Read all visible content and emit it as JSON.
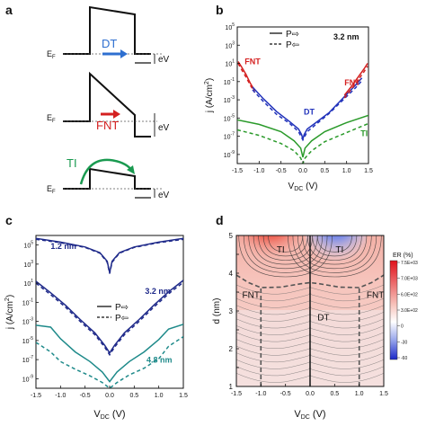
{
  "figure": {
    "panel_labels": {
      "a": "a",
      "b": "b",
      "c": "c",
      "d": "d"
    },
    "panel_a": {
      "diagrams": [
        {
          "fermi_label": "E",
          "fermi_sub": "F",
          "ev_label": "eV",
          "arrow_label": "DT",
          "arrow_color": "#2e6fd0"
        },
        {
          "fermi_label": "E",
          "fermi_sub": "F",
          "ev_label": "eV",
          "arrow_label": "FNT",
          "arrow_color": "#d42020"
        },
        {
          "fermi_label": "E",
          "fermi_sub": "F",
          "ev_label": "eV",
          "arrow_label": "TI",
          "arrow_color": "#1a9a50"
        }
      ]
    }
  },
  "chart_data": [
    {
      "panel": "b",
      "type": "line",
      "ylabel": "j (A/cm",
      "ylabel_sup": "2",
      "ylabel_end": ")",
      "xlabel": "V",
      "xlabel_sub": "DC",
      "xlabel_unit": " (V)",
      "xlim": [
        -1.5,
        1.5
      ],
      "ylim_log10": [
        -10,
        5
      ],
      "y_scale": "log",
      "x_ticks": [
        -1.5,
        -1.0,
        -0.5,
        0.0,
        0.5,
        1.0,
        1.5
      ],
      "x_tick_labels": [
        "-1.5",
        "-1.0",
        "-0.5",
        "0.0",
        "0.5",
        "1.0",
        "1.5"
      ],
      "y_tick_labels": [
        {
          "base": "10",
          "exp": "5",
          "v": 5
        },
        {
          "base": "10",
          "exp": "3",
          "v": 3
        },
        {
          "base": "10",
          "exp": "1",
          "v": 1
        },
        {
          "base": "10",
          "exp": "-1",
          "v": -1
        },
        {
          "base": "10",
          "exp": "-3",
          "v": -3
        },
        {
          "base": "10",
          "exp": "-5",
          "v": -5
        },
        {
          "base": "10",
          "exp": "-7",
          "v": -7
        },
        {
          "base": "10",
          "exp": "-9",
          "v": -9
        }
      ],
      "legend": [
        {
          "text": "P",
          "arrow": "⇨",
          "style": "solid"
        },
        {
          "text": "P",
          "arrow": "⇦",
          "style": "dashed"
        }
      ],
      "thickness_note": "3.2 nm",
      "annotations": [
        {
          "text": "FNT",
          "x": -1.33,
          "y": 0.9,
          "color": "#d42020"
        },
        {
          "text": "FNT",
          "x": 0.95,
          "y": -1.4,
          "color": "#d42020"
        },
        {
          "text": "DT",
          "x": 0.02,
          "y": -4.6,
          "color": "#2233bb"
        },
        {
          "text": "TI",
          "x": 1.32,
          "y": -7.0,
          "color": "#2a9a2a"
        }
      ],
      "series": [
        {
          "color": "#d42020",
          "style": "solid",
          "x": [
            -1.48,
            -1.4,
            -1.3,
            -1.2,
            -1.1
          ],
          "y": [
            1.2,
            0.6,
            -0.2,
            -1.2,
            -2.0
          ]
        },
        {
          "color": "#d42020",
          "style": "dashed",
          "x": [
            -1.48,
            -1.4,
            -1.3,
            -1.2,
            -1.1
          ],
          "y": [
            1.0,
            0.3,
            -0.5,
            -1.4,
            -2.2
          ]
        },
        {
          "color": "#2233bb",
          "style": "solid",
          "x": [
            -1.15,
            -0.9,
            -0.6,
            -0.3,
            -0.1,
            -0.03,
            0.0,
            0.03,
            0.1,
            0.3,
            0.6,
            0.9,
            1.2,
            1.35
          ],
          "y": [
            -1.6,
            -2.9,
            -4.3,
            -5.4,
            -6.2,
            -6.8,
            -7.3,
            -6.8,
            -6.2,
            -5.5,
            -4.4,
            -2.9,
            -1.4,
            -0.6
          ]
        },
        {
          "color": "#2233bb",
          "style": "dashed",
          "x": [
            -1.15,
            -0.9,
            -0.6,
            -0.3,
            -0.1,
            0.0,
            0.1,
            0.3,
            0.6,
            0.9,
            1.2,
            1.35
          ],
          "y": [
            -1.9,
            -3.2,
            -4.6,
            -5.6,
            -6.5,
            -7.4,
            -6.5,
            -5.7,
            -4.5,
            -3.1,
            -1.7,
            -0.9
          ]
        },
        {
          "color": "#d42020",
          "style": "solid",
          "x": [
            0.95,
            1.1,
            1.25,
            1.4,
            1.48
          ],
          "y": [
            -2.5,
            -1.6,
            -0.6,
            0.4,
            1.0
          ]
        },
        {
          "color": "#d42020",
          "style": "dashed",
          "x": [
            0.95,
            1.1,
            1.25,
            1.4,
            1.48
          ],
          "y": [
            -2.8,
            -1.9,
            -0.9,
            0.1,
            0.7
          ]
        },
        {
          "color": "#2a9a2a",
          "style": "solid",
          "x": [
            -1.5,
            -1.0,
            -0.5,
            -0.2,
            -0.05,
            0.0,
            0.05,
            0.2,
            0.5,
            1.0,
            1.5
          ],
          "y": [
            -5.2,
            -5.7,
            -6.5,
            -7.5,
            -8.3,
            -9.3,
            -8.3,
            -7.5,
            -6.5,
            -5.5,
            -4.7
          ]
        },
        {
          "color": "#2a9a2a",
          "style": "dashed",
          "x": [
            -1.5,
            -1.0,
            -0.5,
            -0.2,
            -0.05,
            0.0,
            0.05,
            0.2,
            0.5,
            1.0,
            1.5
          ],
          "y": [
            -6.3,
            -6.9,
            -7.8,
            -8.6,
            -9.4,
            -10.0,
            -9.4,
            -8.6,
            -7.6,
            -6.6,
            -5.6
          ]
        }
      ]
    },
    {
      "panel": "c",
      "type": "line",
      "ylabel": "j (A/cm",
      "ylabel_sup": "2",
      "ylabel_end": ")",
      "xlabel": "V",
      "xlabel_sub": "DC",
      "xlabel_unit": " (V)",
      "xlim": [
        -1.5,
        1.5
      ],
      "ylim_log10": [
        -10,
        6
      ],
      "y_scale": "log",
      "x_ticks": [
        -1.5,
        -1.0,
        -0.5,
        0.0,
        0.5,
        1.0,
        1.5
      ],
      "x_tick_labels": [
        "-1.5",
        "-1.0",
        "-0.5",
        "0.0",
        "0.5",
        "1.0",
        "1.5"
      ],
      "y_tick_labels": [
        {
          "base": "10",
          "exp": "5",
          "v": 5
        },
        {
          "base": "10",
          "exp": "3",
          "v": 3
        },
        {
          "base": "10",
          "exp": "1",
          "v": 1
        },
        {
          "base": "10",
          "exp": "-1",
          "v": -1
        },
        {
          "base": "10",
          "exp": "-3",
          "v": -3
        },
        {
          "base": "10",
          "exp": "-5",
          "v": -5
        },
        {
          "base": "10",
          "exp": "-7",
          "v": -7
        },
        {
          "base": "10",
          "exp": "-9",
          "v": -9
        }
      ],
      "legend": [
        {
          "text": "P",
          "arrow": "⇨",
          "style": "solid"
        },
        {
          "text": "P",
          "arrow": "⇦",
          "style": "dashed"
        }
      ],
      "annotations": [
        {
          "text": "1.2 nm",
          "x": -1.2,
          "y": 4.6,
          "color": "#1f2a8a"
        },
        {
          "text": "3.2 nm",
          "x": 0.72,
          "y": -0.1,
          "color": "#1f2a8a"
        },
        {
          "text": "4.8 nm",
          "x": 0.75,
          "y": -7.3,
          "color": "#1e8a8a"
        }
      ],
      "series": [
        {
          "color": "#1f2a8a",
          "style": "solid",
          "x": [
            -1.5,
            -1.0,
            -0.5,
            -0.2,
            -0.05,
            0.0,
            0.05,
            0.2,
            0.5,
            1.0,
            1.5
          ],
          "y": [
            5.7,
            5.3,
            4.8,
            4.2,
            3.3,
            2.1,
            3.3,
            4.2,
            4.8,
            5.3,
            5.7
          ]
        },
        {
          "color": "#1f2a8a",
          "style": "dashed",
          "x": [
            -1.5,
            -1.0,
            -0.5,
            -0.2,
            -0.05,
            0.0,
            0.05,
            0.2,
            0.5,
            1.0,
            1.5
          ],
          "y": [
            5.6,
            5.25,
            4.75,
            4.15,
            3.2,
            2.0,
            3.2,
            4.15,
            4.75,
            5.25,
            5.6
          ]
        },
        {
          "color": "#1f2a8a",
          "style": "solid",
          "x": [
            -1.5,
            -1.2,
            -0.9,
            -0.6,
            -0.3,
            -0.1,
            0.0,
            0.1,
            0.3,
            0.6,
            0.9,
            1.2,
            1.5
          ],
          "y": [
            1.2,
            0.0,
            -1.3,
            -2.8,
            -4.2,
            -5.5,
            -6.3,
            -5.5,
            -4.2,
            -2.8,
            -1.3,
            0.1,
            1.3
          ]
        },
        {
          "color": "#1f2a8a",
          "style": "dashed",
          "x": [
            -1.5,
            -1.2,
            -0.9,
            -0.6,
            -0.3,
            -0.1,
            0.0,
            0.1,
            0.3,
            0.6,
            0.9,
            1.2,
            1.5
          ],
          "y": [
            1.0,
            -0.2,
            -1.5,
            -3.0,
            -4.4,
            -5.7,
            -6.5,
            -5.7,
            -4.4,
            -3.0,
            -1.5,
            -0.1,
            1.1
          ]
        },
        {
          "color": "#1e8a8a",
          "style": "solid",
          "x": [
            -1.5,
            -1.2,
            -1.0,
            -0.7,
            -0.4,
            -0.15,
            0.0,
            0.15,
            0.4,
            0.7,
            1.0,
            1.2,
            1.5
          ],
          "y": [
            -3.4,
            -3.6,
            -4.8,
            -6.2,
            -7.2,
            -8.3,
            -9.3,
            -8.3,
            -7.2,
            -6.2,
            -4.9,
            -3.8,
            -3.3
          ]
        },
        {
          "color": "#1e8a8a",
          "style": "dashed",
          "x": [
            -1.5,
            -1.2,
            -1.0,
            -0.7,
            -0.4,
            -0.15,
            0.0,
            0.15,
            0.4,
            0.7,
            1.0,
            1.2,
            1.5
          ],
          "y": [
            -5.2,
            -6.2,
            -7.2,
            -8.0,
            -8.7,
            -9.4,
            -10.0,
            -9.4,
            -8.6,
            -7.9,
            -6.9,
            -5.6,
            -4.6
          ]
        }
      ]
    },
    {
      "panel": "d",
      "type": "heatmap",
      "ylabel": "d (nm)",
      "xlabel": "V",
      "xlabel_sub": "DC",
      "xlabel_unit": " (V)",
      "xlim": [
        -1.5,
        1.5
      ],
      "ylim": [
        1,
        5
      ],
      "x_ticks": [
        -1.5,
        -1.0,
        -0.5,
        0.0,
        0.5,
        1.0,
        1.5
      ],
      "x_tick_labels": [
        "-1.5",
        "-1.0",
        "-0.5",
        "0.0",
        "0.5",
        "1.0",
        "1.5"
      ],
      "y_ticks": [
        1,
        1.5,
        2,
        2.5,
        3,
        3.5,
        4,
        4.5,
        5
      ],
      "y_tick_labels": [
        "1",
        "",
        "2",
        "",
        "3",
        "",
        "4",
        "",
        "5"
      ],
      "colorbar": {
        "title": "ER (%)",
        "ticks": [
          "7.5E+03",
          "7.0E+03",
          "6.0E+02",
          "3.0E+02",
          "0",
          "-30",
          "-60"
        ]
      },
      "annotations": [
        {
          "text": "TI",
          "x": -0.68,
          "y": 4.55,
          "color": "#111111"
        },
        {
          "text": "TI",
          "x": 0.52,
          "y": 4.55,
          "color": "#111111"
        },
        {
          "text": "FNT",
          "x": -1.38,
          "y": 3.35,
          "color": "#111111"
        },
        {
          "text": "FNT",
          "x": 1.15,
          "y": 3.35,
          "color": "#111111"
        },
        {
          "text": "DT",
          "x": 0.15,
          "y": 2.75,
          "color": "#111111"
        }
      ],
      "boundaries": [
        {
          "x": [
            -1.0,
            -1.0
          ],
          "y": [
            1.0,
            3.6
          ]
        },
        {
          "x": [
            1.0,
            1.0
          ],
          "y": [
            1.0,
            3.6
          ]
        },
        {
          "x": [
            -1.5,
            -1.25,
            -1.0,
            -0.6,
            -0.2,
            0.0,
            0.2,
            0.6,
            1.0,
            1.25,
            1.5
          ],
          "y": [
            3.95,
            3.75,
            3.62,
            3.63,
            3.72,
            3.75,
            3.72,
            3.63,
            3.62,
            3.75,
            3.95
          ]
        }
      ]
    }
  ]
}
